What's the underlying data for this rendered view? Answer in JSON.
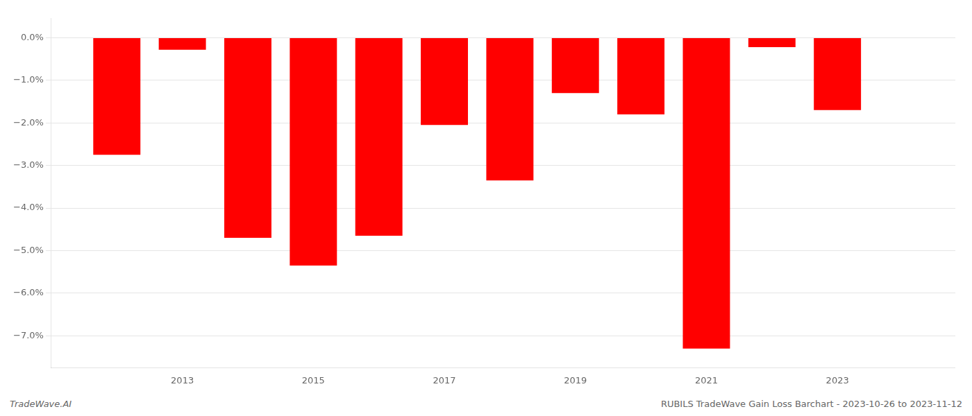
{
  "chart_data": {
    "type": "bar",
    "x": [
      2012,
      2013,
      2014,
      2015,
      2016,
      2017,
      2018,
      2019,
      2020,
      2021,
      2022,
      2023
    ],
    "values": [
      -2.75,
      -0.28,
      -4.7,
      -5.35,
      -4.65,
      -2.05,
      -3.35,
      -1.3,
      -1.8,
      -7.3,
      -0.22,
      -1.7
    ],
    "color": "#ff0000",
    "xlim": [
      2011.0,
      2024.8
    ],
    "xticks": [
      2013,
      2015,
      2017,
      2019,
      2021,
      2023
    ],
    "ylim": [
      -7.75,
      0.45
    ],
    "yticks": [
      {
        "value": 0.0,
        "label": "0.0%"
      },
      {
        "value": -1.0,
        "label": "−1.0%"
      },
      {
        "value": -2.0,
        "label": "−2.0%"
      },
      {
        "value": -3.0,
        "label": "−3.0%"
      },
      {
        "value": -4.0,
        "label": "−4.0%"
      },
      {
        "value": -5.0,
        "label": "−5.0%"
      },
      {
        "value": -6.0,
        "label": "−6.0%"
      },
      {
        "value": -7.0,
        "label": "−7.0%"
      }
    ],
    "grid": true,
    "annotations": [
      "TradeWave.AI",
      "RUBILS TradeWave Gain Loss Barchart - 2023-10-26 to 2023-11-12"
    ]
  }
}
